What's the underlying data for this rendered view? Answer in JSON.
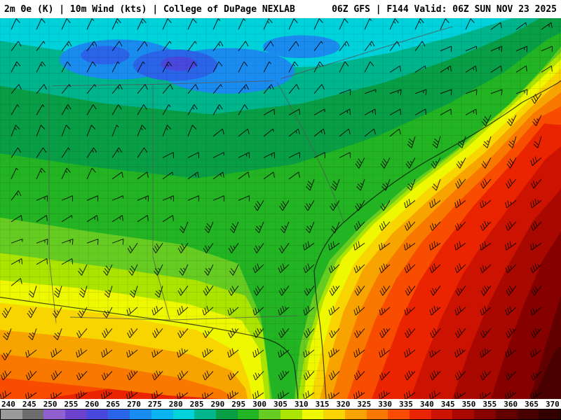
{
  "header": {
    "product_label": "2m Θe (K) | 10m Wind (kts) | College of DuPage NEXLAB",
    "run_info": "06Z GFS | F144 Valid: 06Z SUN NOV 23 2025"
  },
  "colorbar": {
    "unit": "K",
    "ticks": [
      240,
      245,
      250,
      255,
      260,
      265,
      270,
      275,
      280,
      285,
      290,
      295,
      300,
      305,
      310,
      315,
      320,
      325,
      330,
      335,
      340,
      345,
      350,
      355,
      360,
      365,
      370
    ],
    "colors": [
      "#9a9a9a",
      "#6e6e6e",
      "#9060d0",
      "#6a42cc",
      "#4848dc",
      "#2a64e8",
      "#1a8cf0",
      "#0ab4f0",
      "#00d2dc",
      "#00b48c",
      "#089e46",
      "#22b422",
      "#66cc22",
      "#aae400",
      "#eef800",
      "#f8d400",
      "#f8a400",
      "#f87800",
      "#f84c00",
      "#ea2400",
      "#cc1200",
      "#a80800",
      "#860000",
      "#620000",
      "#480000",
      "#320000"
    ]
  },
  "chart_data": {
    "type": "heatmap",
    "title": "2m Θe (K) | 10m Wind (kts)",
    "source": "College of DuPage NEXLAB",
    "model": "GFS",
    "cycle": "06Z",
    "forecast_hour": "F144",
    "valid": "06Z SUN NOV 23 2025",
    "scale_min": 240,
    "scale_max": 370,
    "scale_step": 5,
    "field_pattern": "cool theta-e (265-295 K) northwest over TN/AL/GA, warm theta-e (310-355 K) southeast over Gulf and Atlantic, gradient along SE coast, cool tongue down Florida interior"
  }
}
